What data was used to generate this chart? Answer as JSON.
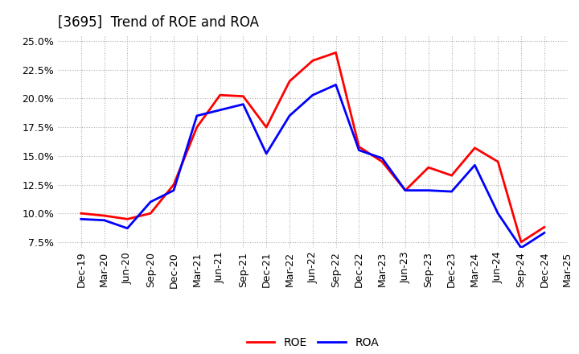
{
  "title": "[3695]  Trend of ROE and ROA",
  "x_labels": [
    "Dec-19",
    "Mar-20",
    "Jun-20",
    "Sep-20",
    "Dec-20",
    "Mar-21",
    "Jun-21",
    "Sep-21",
    "Dec-21",
    "Mar-22",
    "Jun-22",
    "Sep-22",
    "Dec-22",
    "Mar-23",
    "Jun-23",
    "Sep-23",
    "Dec-23",
    "Mar-24",
    "Jun-24",
    "Sep-24",
    "Dec-24",
    "Mar-25"
  ],
  "roe": [
    10.0,
    9.8,
    9.5,
    10.0,
    12.5,
    17.5,
    20.3,
    20.2,
    17.5,
    21.5,
    23.3,
    24.0,
    15.8,
    14.5,
    12.0,
    14.0,
    13.3,
    15.7,
    14.5,
    7.5,
    8.8,
    null
  ],
  "roa": [
    9.5,
    9.4,
    8.7,
    11.0,
    12.0,
    18.5,
    19.0,
    19.5,
    15.2,
    18.5,
    20.3,
    21.2,
    15.5,
    14.8,
    12.0,
    12.0,
    11.9,
    14.2,
    10.0,
    7.0,
    8.3,
    null
  ],
  "roe_color": "#ff0000",
  "roa_color": "#0000ff",
  "ylim": [
    7.0,
    25.5
  ],
  "yticks": [
    7.5,
    10.0,
    12.5,
    15.0,
    17.5,
    20.0,
    22.5,
    25.0
  ],
  "bg_color": "#ffffff",
  "grid_color": "#b0b0b0",
  "title_fontsize": 12,
  "axis_fontsize": 9,
  "line_width": 2.0,
  "legend_fontsize": 10
}
